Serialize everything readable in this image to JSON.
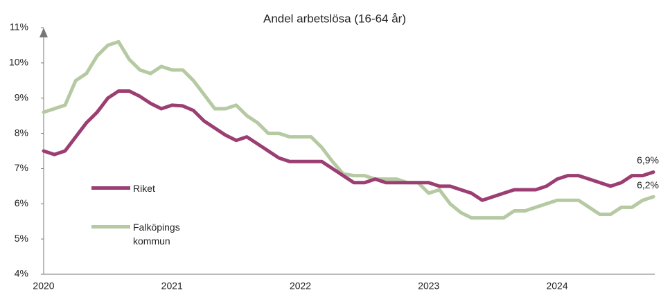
{
  "chart_data": {
    "type": "line",
    "title": "Andel arbetslösa (16-64 år)",
    "categories": [
      "2020",
      null,
      null,
      null,
      null,
      null,
      null,
      null,
      null,
      null,
      null,
      null,
      "2021",
      null,
      null,
      null,
      null,
      null,
      null,
      null,
      null,
      null,
      null,
      null,
      "2022",
      null,
      null,
      null,
      null,
      null,
      null,
      null,
      null,
      null,
      null,
      null,
      "2023",
      null,
      null,
      null,
      null,
      null,
      null,
      null,
      null,
      null,
      null,
      null,
      "2024",
      null,
      null,
      null,
      null,
      null,
      null,
      null,
      null,
      null
    ],
    "series": [
      {
        "name": "Riket",
        "color": "#9b3f72",
        "values": [
          7.5,
          7.4,
          7.5,
          7.9,
          8.3,
          8.6,
          9.0,
          9.2,
          9.2,
          9.05,
          8.85,
          8.7,
          8.8,
          8.78,
          8.65,
          8.35,
          8.15,
          7.95,
          7.8,
          7.9,
          7.7,
          7.5,
          7.3,
          7.2,
          7.2,
          7.2,
          7.2,
          7.0,
          6.8,
          6.6,
          6.6,
          6.7,
          6.6,
          6.6,
          6.6,
          6.6,
          6.6,
          6.5,
          6.5,
          6.4,
          6.3,
          6.1,
          6.2,
          6.3,
          6.4,
          6.4,
          6.4,
          6.5,
          6.7,
          6.8,
          6.8,
          6.7,
          6.6,
          6.5,
          6.6,
          6.8,
          6.8,
          6.9
        ],
        "value_labels": [
          null,
          null,
          null,
          null,
          null,
          null,
          null,
          null,
          null,
          null,
          null,
          null,
          null,
          null,
          null,
          null,
          null,
          null,
          null,
          null,
          null,
          null,
          null,
          null,
          null,
          null,
          null,
          null,
          null,
          null,
          null,
          null,
          null,
          null,
          null,
          null,
          null,
          null,
          null,
          null,
          null,
          null,
          null,
          null,
          null,
          null,
          null,
          null,
          null,
          null,
          null,
          null,
          null,
          null,
          null,
          null,
          null,
          "6,9%"
        ]
      },
      {
        "name": "Falköpings kommun",
        "color": "#b5c9a2",
        "values": [
          8.6,
          8.7,
          8.8,
          9.5,
          9.7,
          10.2,
          10.5,
          10.6,
          10.1,
          9.8,
          9.7,
          9.9,
          9.8,
          9.8,
          9.5,
          9.1,
          8.7,
          8.7,
          8.8,
          8.5,
          8.3,
          8.0,
          8.0,
          7.9,
          7.9,
          7.9,
          7.6,
          7.2,
          6.85,
          6.8,
          6.8,
          6.7,
          6.7,
          6.7,
          6.6,
          6.6,
          6.3,
          6.4,
          6.0,
          5.75,
          5.6,
          5.6,
          5.6,
          5.6,
          5.8,
          5.8,
          5.9,
          6.0,
          6.1,
          6.1,
          6.1,
          5.9,
          5.7,
          5.7,
          5.9,
          5.9,
          6.1,
          6.2
        ],
        "value_labels": [
          null,
          null,
          null,
          null,
          null,
          null,
          null,
          null,
          null,
          null,
          null,
          null,
          null,
          null,
          null,
          null,
          null,
          null,
          null,
          null,
          null,
          null,
          null,
          null,
          null,
          null,
          null,
          null,
          null,
          null,
          null,
          null,
          null,
          null,
          null,
          null,
          null,
          null,
          null,
          null,
          null,
          null,
          null,
          null,
          null,
          null,
          null,
          null,
          null,
          null,
          null,
          null,
          null,
          null,
          null,
          null,
          null,
          "6,2%"
        ]
      }
    ],
    "ylim": [
      4,
      11
    ],
    "yticks": [
      {
        "value": 4,
        "label": "4%"
      },
      {
        "value": 5,
        "label": "5%"
      },
      {
        "value": 6,
        "label": "6%"
      },
      {
        "value": 7,
        "label": "7%"
      },
      {
        "value": 8,
        "label": "8%"
      },
      {
        "value": 9,
        "label": "9%"
      },
      {
        "value": 10,
        "label": "10%"
      },
      {
        "value": 11,
        "label": "11%"
      }
    ],
    "grid": false,
    "legend_position": "left"
  }
}
